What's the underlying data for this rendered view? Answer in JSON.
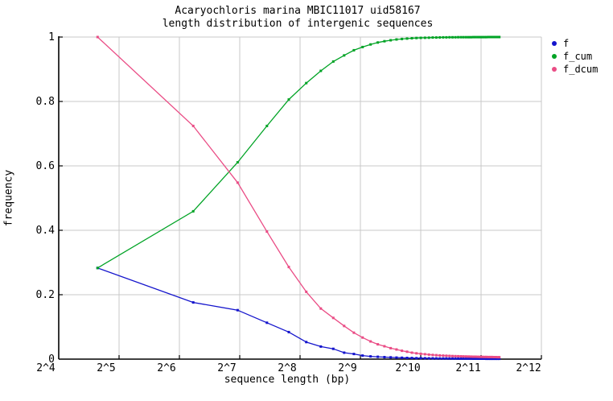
{
  "title": {
    "line1": "Acaryochloris marina MBIC11017 uid58167",
    "line2": "length distribution of intergenic sequences"
  },
  "axes": {
    "x": {
      "label": "sequence length (bp)",
      "scale": "log2",
      "min_exp": 4,
      "max_exp": 12,
      "tick_labels": [
        "2^4",
        "2^5",
        "2^6",
        "2^7",
        "2^8",
        "2^9",
        "2^10",
        "2^11",
        "2^12"
      ]
    },
    "y": {
      "label": "frequency",
      "min": 0,
      "max": 1,
      "tick_labels": [
        "0",
        "0.2",
        "0.4",
        "0.6",
        "0.8",
        "1"
      ],
      "tick_values": [
        0,
        0.2,
        0.4,
        0.6,
        0.8,
        1
      ]
    }
  },
  "legend": {
    "items": [
      {
        "label": "f",
        "color": "#1414cc"
      },
      {
        "label": "f_cum",
        "color": "#00a325"
      },
      {
        "label": "f_dcum",
        "color": "#ea4c85"
      }
    ]
  },
  "colors": {
    "background": "#ffffff",
    "grid": "#c9c9c9",
    "axis": "#000000",
    "series_f": "#1414cc",
    "series_f_cum": "#00a325",
    "series_f_dcum": "#ea4c85"
  },
  "chart_data": {
    "type": "line",
    "title": "Acaryochloris marina MBIC11017 uid58167 — length distribution of intergenic sequences",
    "xlabel": "sequence length (bp)",
    "ylabel": "frequency",
    "x_scale": "log2",
    "xlim_exp": [
      4,
      12
    ],
    "ylim": [
      0,
      1
    ],
    "grid": true,
    "legend_position": "right-outside",
    "marker": "square",
    "x_bins_bp": [
      25,
      75,
      125,
      175,
      225,
      275,
      325,
      375,
      425,
      475,
      525,
      575,
      625,
      675,
      725,
      775,
      825,
      875,
      925,
      975,
      1025,
      1075,
      1125,
      1175,
      1225,
      1275,
      1325,
      1375,
      1425,
      1475,
      1525,
      1575,
      1625,
      1675,
      1725,
      1775,
      1825,
      1875,
      1925,
      1975,
      2025,
      2075,
      2125,
      2175,
      2225,
      2275,
      2325,
      2375,
      2425,
      2475,
      2525
    ],
    "series": [
      {
        "name": "f",
        "color": "#1414cc",
        "values": [
          0.283,
          0.176,
          0.152,
          0.113,
          0.084,
          0.053,
          0.039,
          0.032,
          0.02,
          0.016,
          0.011,
          0.0085,
          0.0073,
          0.0062,
          0.0054,
          0.0047,
          0.0042,
          0.0038,
          0.0034,
          0.0031,
          0.0029,
          0.0027,
          0.0025,
          0.0024,
          0.0022,
          0.0021,
          0.002,
          0.0019,
          0.0018,
          0.0018,
          0.0017,
          0.0016,
          0.0016,
          0.0015,
          0.0015,
          0.0014,
          0.0014,
          0.0013,
          0.0013,
          0.0013,
          0.0012,
          0.0012,
          0.0012,
          0.0011,
          0.0011,
          0.0011,
          0.0011,
          0.001,
          0.001,
          0.001,
          0.001
        ]
      },
      {
        "name": "f_cum",
        "color": "#00a325",
        "values": [
          0.283,
          0.459,
          0.611,
          0.724,
          0.806,
          0.857,
          0.895,
          0.924,
          0.943,
          0.959,
          0.969,
          0.977,
          0.983,
          0.987,
          0.99,
          0.9924,
          0.9941,
          0.9953,
          0.9962,
          0.9969,
          0.9974,
          0.9978,
          0.9981,
          0.9984,
          0.9986,
          0.9988,
          0.9989,
          0.9991,
          0.9992,
          0.9993,
          0.9993,
          0.9994,
          0.9994,
          0.9995,
          0.9995,
          0.9996,
          0.9996,
          0.9997,
          0.9997,
          0.9997,
          0.9998,
          0.9998,
          0.9998,
          0.9998,
          0.9999,
          0.9999,
          0.9999,
          0.9999,
          0.9999,
          1.0,
          1.0
        ]
      },
      {
        "name": "f_dcum",
        "color": "#ea4c85",
        "values": [
          1.0,
          0.724,
          0.548,
          0.396,
          0.286,
          0.209,
          0.157,
          0.128,
          0.103,
          0.082,
          0.067,
          0.055,
          0.046,
          0.04,
          0.034,
          0.03,
          0.026,
          0.023,
          0.02,
          0.018,
          0.0165,
          0.0152,
          0.0141,
          0.0131,
          0.0123,
          0.0116,
          0.011,
          0.0105,
          0.01,
          0.0096,
          0.0093,
          0.009,
          0.0087,
          0.0084,
          0.0082,
          0.008,
          0.0078,
          0.0076,
          0.0074,
          0.0072,
          0.0071,
          0.0069,
          0.0068,
          0.0067,
          0.0066,
          0.0065,
          0.0064,
          0.0063,
          0.0062,
          0.0061,
          0.006
        ]
      }
    ]
  }
}
